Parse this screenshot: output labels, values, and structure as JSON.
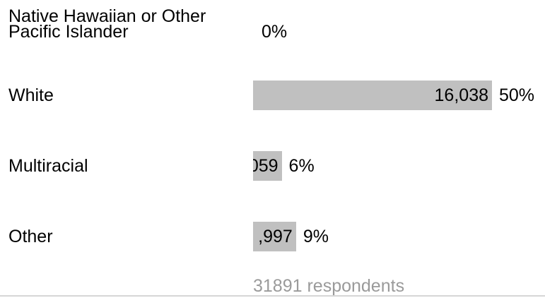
{
  "chart_data": {
    "type": "bar",
    "orientation": "horizontal",
    "categories": [
      "Native Hawaiian or Other Pacific Islander",
      "White",
      "Multiracial",
      "Other"
    ],
    "category_lines": [
      [
        "Native Hawaiian or Other",
        "Pacific Islander"
      ],
      [
        "White"
      ],
      [
        "Multiracial"
      ],
      [
        "Other"
      ]
    ],
    "values": [
      null,
      16038,
      null,
      null
    ],
    "value_labels": [
      "",
      "16,038",
      "059",
      ",997"
    ],
    "percents": [
      0,
      50,
      6,
      9
    ],
    "percent_labels": [
      "0%",
      "50%",
      "6%",
      "9%"
    ],
    "bar_color": "#c0c0c0",
    "footer": "31891 respondents"
  }
}
